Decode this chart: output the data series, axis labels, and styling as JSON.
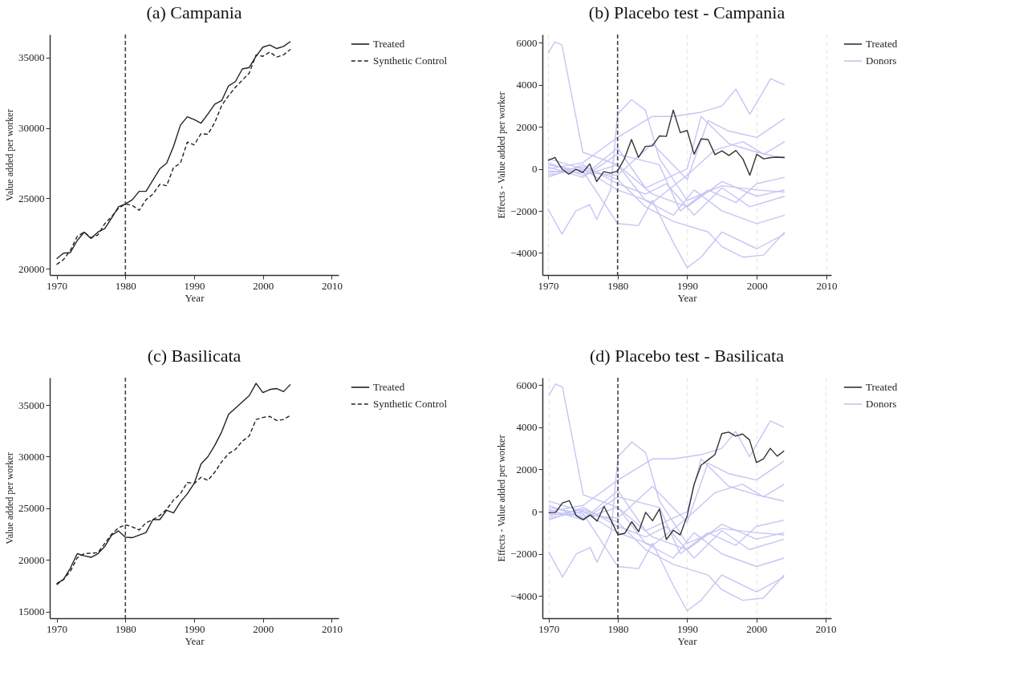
{
  "chart_data": [
    {
      "type": "line",
      "title": "(a) Campania",
      "xlabel": "Year",
      "ylabel": "Value added per worker",
      "xlim": [
        1969,
        2011
      ],
      "xticks": [
        1970,
        1980,
        1990,
        2000,
        2010
      ],
      "ylim": [
        19550,
        36650
      ],
      "yticks": [
        20000,
        25000,
        30000,
        35000
      ],
      "legend": "right",
      "grid": false,
      "x": [
        1970,
        1971,
        1972,
        1973,
        1974,
        1975,
        1976,
        1977,
        1978,
        1979,
        1980,
        1981,
        1982,
        1983,
        1984,
        1985,
        1986,
        1987,
        1988,
        1989,
        1990,
        1991,
        1992,
        1993,
        1994,
        1995,
        1996,
        1997,
        1998,
        1999,
        2000,
        2001,
        2002,
        2003,
        2004
      ],
      "ref_lines": [
        {
          "axis": "x",
          "value": 1980,
          "line_style": "dashed",
          "color": "#444444"
        }
      ],
      "series": [
        {
          "name": "Treated",
          "color": "#222222",
          "line_style": "solid",
          "values": [
            20700,
            21100,
            21150,
            22000,
            22600,
            22150,
            22600,
            22850,
            23600,
            24400,
            24600,
            24900,
            25500,
            25500,
            26300,
            27100,
            27500,
            28700,
            30200,
            30800,
            30600,
            30350,
            31000,
            31700,
            31950,
            33000,
            33300,
            34200,
            34300,
            35100,
            35750,
            35900,
            35650,
            35800,
            36150
          ]
        },
        {
          "name": "Synthetic Control",
          "color": "#222222",
          "line_style": "dashed",
          "values": [
            20300,
            20650,
            21300,
            22300,
            22600,
            22200,
            22400,
            23200,
            23700,
            24300,
            24600,
            24500,
            24150,
            24900,
            25300,
            26000,
            25900,
            27200,
            27500,
            29000,
            28800,
            29600,
            29550,
            30400,
            31600,
            32300,
            32900,
            33400,
            33900,
            35200,
            35100,
            35400,
            35050,
            35200,
            35600
          ]
        }
      ]
    },
    {
      "type": "line",
      "title": "(b) Placebo test - Campania",
      "xlabel": "Year",
      "ylabel": "Effects - Value added per worker",
      "xlim": [
        1969.2,
        2010.7
      ],
      "xticks": [
        1970,
        1980,
        1990,
        2000,
        2010
      ],
      "ylim": [
        -5050,
        6400
      ],
      "yticks": [
        -4000,
        -2000,
        0,
        2000,
        4000,
        6000
      ],
      "legend": "right",
      "grid": "x",
      "ref_lines": [
        {
          "axis": "x",
          "value": 1980,
          "line_style": "dashed",
          "color": "#444444"
        }
      ],
      "series": [
        {
          "name": "Treated",
          "color": "#333333",
          "x": [
            1970,
            1971,
            1972,
            1973,
            1974,
            1975,
            1976,
            1977,
            1978,
            1979,
            1980,
            1981,
            1982,
            1983,
            1984,
            1985,
            1986,
            1987,
            1988,
            1989,
            1990,
            1991,
            1992,
            1993,
            1994,
            1995,
            1996,
            1997,
            1998,
            1999,
            2000,
            2001,
            2002,
            2003,
            2004
          ],
          "values": [
            400,
            550,
            0,
            -250,
            -20,
            -170,
            240,
            -600,
            -130,
            -200,
            -100,
            500,
            1400,
            550,
            1070,
            1100,
            1570,
            1550,
            2800,
            1730,
            1830,
            700,
            1430,
            1400,
            680,
            860,
            640,
            880,
            480,
            -300,
            700,
            480,
            540,
            560,
            550
          ]
        },
        {
          "name": "Donors",
          "color": "#c5c5f5",
          "x": [
            1970,
            1971,
            1972,
            1975,
            1980,
            1985,
            1990,
            1995,
            2000,
            2004
          ],
          "values": [
            5500,
            6050,
            5900,
            800,
            200,
            -1200,
            -1800,
            -600,
            -1300,
            -1000
          ]
        },
        {
          "color": "#c5c5f5",
          "x": [
            1970,
            1972,
            1974,
            1976,
            1977,
            1979,
            1980,
            1982,
            1984,
            1986,
            1990,
            1995,
            2000,
            2004
          ],
          "values": [
            -1900,
            -3100,
            -2000,
            -1700,
            -2400,
            -1000,
            2600,
            3300,
            2800,
            500,
            -1500,
            -800,
            -1000,
            -1100
          ]
        },
        {
          "color": "#c5c5f5",
          "x": [
            1970,
            1975,
            1980,
            1983,
            1985,
            1988,
            1990,
            1992,
            1995,
            2000,
            2004
          ],
          "values": [
            200,
            -100,
            -2600,
            -2700,
            -1500,
            -3500,
            -4700,
            -4200,
            -3000,
            -3800,
            -3100
          ]
        },
        {
          "color": "#c5c5f5",
          "x": [
            1970,
            1975,
            1980,
            1984,
            1988,
            1993,
            1995,
            1998,
            2001,
            2004
          ],
          "values": [
            -200,
            100,
            -500,
            -1800,
            -2500,
            -3000,
            -3700,
            -4200,
            -4100,
            -3000
          ]
        },
        {
          "color": "#c5c5f5",
          "x": [
            1970,
            1975,
            1980,
            1985,
            1988,
            1992,
            1995,
            1997,
            1999,
            2002,
            2004
          ],
          "values": [
            0,
            300,
            1500,
            2500,
            2500,
            2700,
            3000,
            3800,
            2600,
            4300,
            4000
          ]
        },
        {
          "color": "#c5c5f5",
          "x": [
            1970,
            1976,
            1980,
            1985,
            1990,
            1993,
            1996,
            2000,
            2004
          ],
          "values": [
            -100,
            -200,
            -300,
            1200,
            -500,
            2300,
            1800,
            1500,
            2400
          ]
        },
        {
          "color": "#c5c5f5",
          "x": [
            1970,
            1975,
            1980,
            1984,
            1988,
            1991,
            1995,
            2000,
            2004
          ],
          "values": [
            300,
            -300,
            200,
            -1500,
            -2200,
            -1000,
            -2000,
            -2600,
            -2200
          ]
        },
        {
          "color": "#c5c5f5",
          "x": [
            1970,
            1975,
            1980,
            1985,
            1990,
            1994,
            1998,
            2001,
            2004
          ],
          "values": [
            -300,
            0,
            -1000,
            -1600,
            -300,
            900,
            1300,
            700,
            1300
          ]
        },
        {
          "color": "#c5c5f5",
          "x": [
            1970,
            1975,
            1980,
            1986,
            1989,
            1993,
            1997,
            2000,
            2004
          ],
          "values": [
            100,
            -400,
            700,
            200,
            -2000,
            -1000,
            -1600,
            -700,
            -400
          ]
        },
        {
          "color": "#c5c5f5",
          "x": [
            1970,
            1975,
            1980,
            1984,
            1987,
            1991,
            1995,
            1999,
            2004
          ],
          "values": [
            -400,
            200,
            -700,
            -1200,
            -700,
            -2200,
            -900,
            -1800,
            -1300
          ]
        },
        {
          "color": "#c5c5f5",
          "x": [
            1970,
            1976,
            1980,
            1984,
            1990,
            1992,
            1996,
            2000,
            2004
          ],
          "values": [
            500,
            -100,
            1000,
            -900,
            0,
            2500,
            1200,
            800,
            500
          ]
        }
      ]
    },
    {
      "type": "line",
      "title": "(c) Basilicata",
      "xlabel": "Year",
      "ylabel": "Value added per worker",
      "xlim": [
        1969,
        2011
      ],
      "xticks": [
        1970,
        1980,
        1990,
        2000,
        2010
      ],
      "ylim": [
        14350,
        37650
      ],
      "yticks": [
        15000,
        20000,
        25000,
        30000,
        35000
      ],
      "legend": "right",
      "grid": false,
      "x": [
        1970,
        1971,
        1972,
        1973,
        1974,
        1975,
        1976,
        1977,
        1978,
        1979,
        1980,
        1981,
        1982,
        1983,
        1984,
        1985,
        1986,
        1987,
        1988,
        1989,
        1990,
        1991,
        1992,
        1993,
        1994,
        1995,
        1996,
        1997,
        1998,
        1999,
        2000,
        2001,
        2002,
        2003,
        2004
      ],
      "ref_lines": [
        {
          "axis": "x",
          "value": 1980,
          "line_style": "dashed",
          "color": "#444444"
        }
      ],
      "series": [
        {
          "name": "Treated",
          "color": "#222222",
          "line_style": "solid",
          "values": [
            17700,
            18100,
            19200,
            20600,
            20400,
            20250,
            20600,
            21300,
            22400,
            22800,
            22200,
            22150,
            22400,
            22650,
            23900,
            23900,
            24800,
            24550,
            25600,
            26400,
            27400,
            29300,
            30000,
            31100,
            32400,
            34100,
            34700,
            35300,
            35900,
            37100,
            36200,
            36500,
            36600,
            36300,
            37000
          ]
        },
        {
          "name": "Synthetic Control",
          "color": "#222222",
          "line_style": "dashed",
          "values": [
            17600,
            18100,
            18900,
            20200,
            20600,
            20650,
            20700,
            21600,
            22500,
            23100,
            23400,
            23200,
            22900,
            23600,
            23900,
            24300,
            24900,
            25800,
            26400,
            27500,
            27400,
            28000,
            27700,
            28500,
            29500,
            30300,
            30700,
            31500,
            32000,
            33600,
            33800,
            33900,
            33500,
            33600,
            34000
          ]
        }
      ]
    },
    {
      "type": "line",
      "title": "(d) Placebo test - Basilicata",
      "xlabel": "Year",
      "ylabel": "Effects - Value added per worker",
      "xlim": [
        1969.1,
        2010.8
      ],
      "xticks": [
        1970,
        1980,
        1990,
        2000,
        2010
      ],
      "ylim": [
        -5050,
        6350
      ],
      "yticks": [
        -4000,
        -2000,
        0,
        2000,
        4000,
        6000
      ],
      "legend": "right",
      "grid": "x",
      "ref_lines": [
        {
          "axis": "x",
          "value": 1980,
          "line_style": "dashed",
          "color": "#444444"
        }
      ],
      "series": [
        {
          "name": "Treated",
          "color": "#333333",
          "x": [
            1970,
            1971,
            1972,
            1973,
            1974,
            1975,
            1976,
            1977,
            1978,
            1979,
            1980,
            1981,
            1982,
            1983,
            1984,
            1985,
            1986,
            1987,
            1988,
            1989,
            1990,
            1991,
            1992,
            1993,
            1994,
            1995,
            1996,
            1997,
            1998,
            1999,
            2000,
            2001,
            2002,
            2003,
            2004
          ],
          "values": [
            -50,
            -40,
            420,
            520,
            -200,
            -380,
            -150,
            -450,
            250,
            -400,
            -1100,
            -1020,
            -480,
            -950,
            -30,
            -430,
            120,
            -1320,
            -880,
            -1100,
            -200,
            1300,
            2200,
            2450,
            2700,
            3700,
            3770,
            3580,
            3680,
            3400,
            2330,
            2500,
            3000,
            2630,
            2880
          ]
        },
        {
          "name": "Donors",
          "color": "#c5c5f5",
          "x": [
            1970,
            1971,
            1972,
            1975,
            1980,
            1985,
            1990,
            1995,
            2000,
            2004
          ],
          "values": [
            5500,
            6050,
            5900,
            800,
            200,
            -1200,
            -1800,
            -600,
            -1300,
            -1000
          ]
        },
        {
          "color": "#c5c5f5",
          "x": [
            1970,
            1972,
            1974,
            1976,
            1977,
            1979,
            1980,
            1982,
            1984,
            1986,
            1990,
            1995,
            2000,
            2004
          ],
          "values": [
            -1900,
            -3100,
            -2000,
            -1700,
            -2400,
            -1000,
            2600,
            3300,
            2800,
            500,
            -1500,
            -800,
            -1000,
            -1100
          ]
        },
        {
          "color": "#c5c5f5",
          "x": [
            1970,
            1975,
            1980,
            1983,
            1985,
            1988,
            1990,
            1992,
            1995,
            2000,
            2004
          ],
          "values": [
            200,
            -100,
            -2600,
            -2700,
            -1500,
            -3500,
            -4700,
            -4200,
            -3000,
            -3800,
            -3100
          ]
        },
        {
          "color": "#c5c5f5",
          "x": [
            1970,
            1975,
            1980,
            1984,
            1988,
            1993,
            1995,
            1998,
            2001,
            2004
          ],
          "values": [
            -200,
            100,
            -500,
            -1800,
            -2500,
            -3000,
            -3700,
            -4200,
            -4100,
            -3000
          ]
        },
        {
          "color": "#c5c5f5",
          "x": [
            1970,
            1975,
            1980,
            1985,
            1988,
            1992,
            1995,
            1997,
            1999,
            2002,
            2004
          ],
          "values": [
            0,
            300,
            1500,
            2500,
            2500,
            2700,
            3000,
            3800,
            2600,
            4300,
            4000
          ]
        },
        {
          "color": "#c5c5f5",
          "x": [
            1970,
            1976,
            1980,
            1985,
            1990,
            1993,
            1996,
            2000,
            2004
          ],
          "values": [
            -100,
            -200,
            -300,
            1200,
            -500,
            2300,
            1800,
            1500,
            2400
          ]
        },
        {
          "color": "#c5c5f5",
          "x": [
            1970,
            1975,
            1980,
            1984,
            1988,
            1991,
            1995,
            2000,
            2004
          ],
          "values": [
            300,
            -300,
            200,
            -1500,
            -2200,
            -1000,
            -2000,
            -2600,
            -2200
          ]
        },
        {
          "color": "#c5c5f5",
          "x": [
            1970,
            1975,
            1980,
            1985,
            1990,
            1994,
            1998,
            2001,
            2004
          ],
          "values": [
            -300,
            0,
            -1000,
            -1600,
            -300,
            900,
            1300,
            700,
            1300
          ]
        },
        {
          "color": "#c5c5f5",
          "x": [
            1970,
            1975,
            1980,
            1986,
            1989,
            1993,
            1997,
            2000,
            2004
          ],
          "values": [
            100,
            -400,
            700,
            200,
            -2000,
            -1000,
            -1600,
            -700,
            -400
          ]
        },
        {
          "color": "#c5c5f5",
          "x": [
            1970,
            1975,
            1980,
            1984,
            1987,
            1991,
            1995,
            1999,
            2004
          ],
          "values": [
            -400,
            200,
            -700,
            -1200,
            -700,
            -2200,
            -900,
            -1800,
            -1300
          ]
        },
        {
          "color": "#c5c5f5",
          "x": [
            1970,
            1976,
            1980,
            1984,
            1990,
            1992,
            1996,
            2000,
            2004
          ],
          "values": [
            500,
            -100,
            1000,
            -900,
            0,
            2500,
            1200,
            800,
            500
          ]
        }
      ]
    }
  ]
}
